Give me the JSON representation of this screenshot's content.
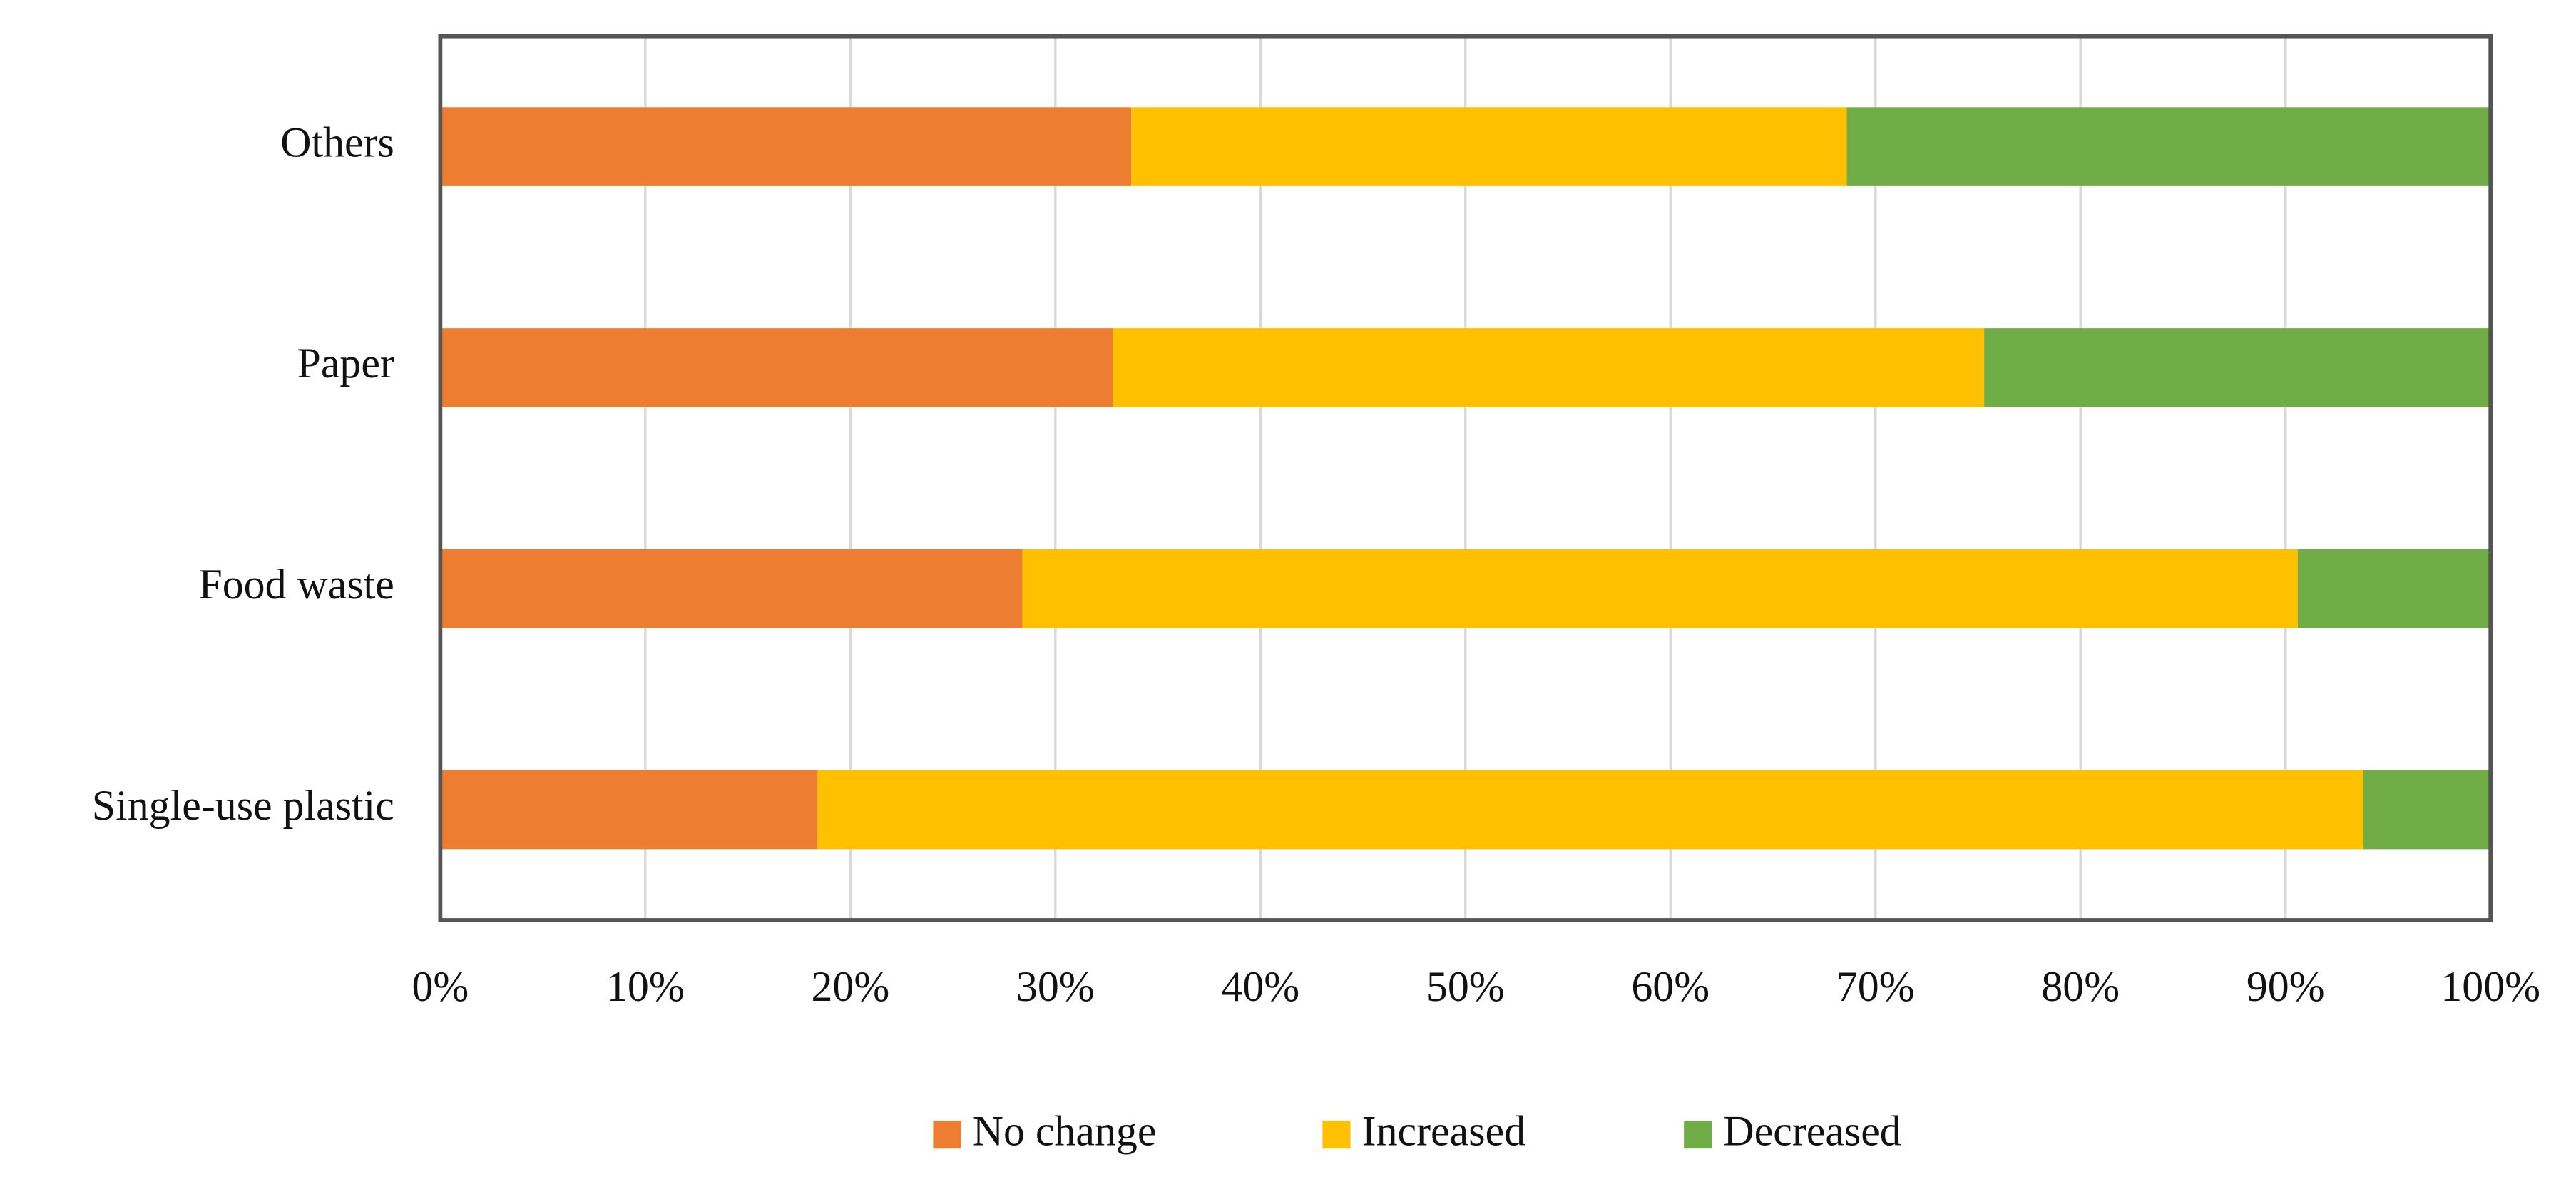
{
  "chart_data": {
    "type": "stacked-bar-horizontal",
    "categories": [
      "Single-use plastic",
      "Food waste",
      "Paper",
      "Others"
    ],
    "series": [
      {
        "name": "No change",
        "color": "#ED7D31",
        "values": [
          18.4,
          28.4,
          32.8,
          33.7
        ]
      },
      {
        "name": "Increased",
        "color": "#FFC000",
        "values": [
          75.4,
          62.2,
          42.5,
          34.9
        ]
      },
      {
        "name": "Decreased",
        "color": "#70AD47",
        "values": [
          6.2,
          9.4,
          24.7,
          31.4
        ]
      }
    ],
    "xlim": [
      0,
      100
    ],
    "xticks": [
      {
        "value": 0,
        "label": "0%"
      },
      {
        "value": 10,
        "label": "10%"
      },
      {
        "value": 20,
        "label": "20%"
      },
      {
        "value": 30,
        "label": "30%"
      },
      {
        "value": 40,
        "label": "40%"
      },
      {
        "value": 50,
        "label": "50%"
      },
      {
        "value": 60,
        "label": "60%"
      },
      {
        "value": 70,
        "label": "70%"
      },
      {
        "value": 80,
        "label": "80%"
      },
      {
        "value": 90,
        "label": "90%"
      },
      {
        "value": 100,
        "label": "100%"
      }
    ],
    "grid": true,
    "legend": "bottom"
  }
}
